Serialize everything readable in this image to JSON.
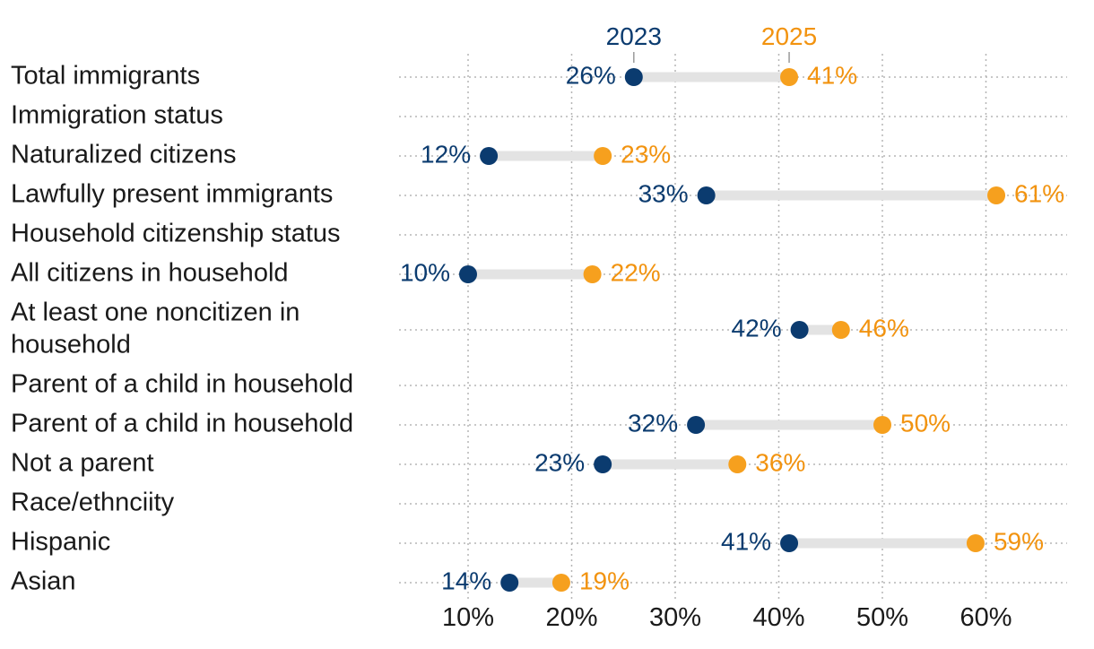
{
  "colors": {
    "series_a": "#0b3b6f",
    "series_b": "#f6a01e",
    "series_b_text": "#f2930f",
    "connector": "#e3e3e3",
    "grid": "#b5b5b5"
  },
  "chart_data": {
    "type": "dumbbell",
    "title": "",
    "xlabel": "",
    "ylabel": "",
    "xlim": [
      7,
      69
    ],
    "xticks": [
      10,
      20,
      30,
      40,
      50,
      60
    ],
    "tick_labels": [
      "10%",
      "20%",
      "30%",
      "40%",
      "50%",
      "60%"
    ],
    "legend": [
      "2023",
      "2025"
    ],
    "series": [
      {
        "name": "2023"
      },
      {
        "name": "2025"
      }
    ],
    "rows": [
      {
        "label": "Total immigrants",
        "v2023": 26,
        "v2025": 41,
        "l2023": "26%",
        "l2025": "41%"
      },
      {
        "label": "Immigration status",
        "v2023": null,
        "v2025": null
      },
      {
        "label": "Naturalized citizens",
        "v2023": 12,
        "v2025": 23,
        "l2023": "12%",
        "l2025": "23%"
      },
      {
        "label": "Lawfully present immigrants",
        "v2023": 33,
        "v2025": 61,
        "l2023": "33%",
        "l2025": "61%"
      },
      {
        "label": "Household citizenship status",
        "v2023": null,
        "v2025": null
      },
      {
        "label": "All citizens in household",
        "v2023": 10,
        "v2025": 22,
        "l2023": "10%",
        "l2025": "22%"
      },
      {
        "label": "At least one noncitizen in household",
        "label_lines": [
          "At least one noncitizen in",
          "household"
        ],
        "v2023": 42,
        "v2025": 46,
        "l2023": "42%",
        "l2025": "46%"
      },
      {
        "label": "Parent of a child in household",
        "v2023": null,
        "v2025": null
      },
      {
        "label": "Parent of a child in household",
        "v2023": 32,
        "v2025": 50,
        "l2023": "32%",
        "l2025": "50%"
      },
      {
        "label": "Not a parent",
        "v2023": 23,
        "v2025": 36,
        "l2023": "23%",
        "l2025": "36%"
      },
      {
        "label": "Race/ethnciity",
        "v2023": null,
        "v2025": null
      },
      {
        "label": "Hispanic",
        "v2023": 41,
        "v2025": 59,
        "l2023": "41%",
        "l2025": "59%"
      },
      {
        "label": "Asian",
        "v2023": 14,
        "v2025": 19,
        "l2023": "14%",
        "l2025": "19%"
      }
    ]
  }
}
